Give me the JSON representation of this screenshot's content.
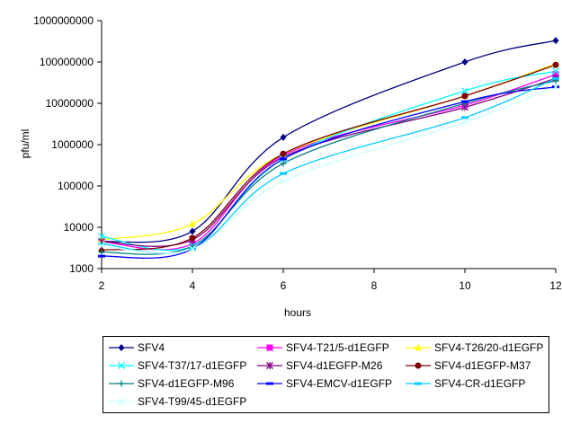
{
  "chart_data": {
    "type": "line",
    "xlabel": "hours",
    "ylabel": "pfu/ml",
    "yscale": "log",
    "xlim": [
      2,
      12
    ],
    "ylim": [
      1000,
      1000000000
    ],
    "x_ticks": [
      "2",
      "4",
      "6",
      "8",
      "10",
      "12"
    ],
    "y_ticks": [
      "1000",
      "10000",
      "100000",
      "1000000",
      "10000000",
      "100000000",
      "1000000000"
    ],
    "grid": false,
    "legend_position": "bottom",
    "x": [
      2,
      4,
      6,
      10,
      12
    ],
    "series": [
      {
        "name": "SFV4",
        "color": "#000080",
        "marker": "diamond",
        "values": [
          4500,
          8000,
          1500000,
          100000000,
          330000000
        ]
      },
      {
        "name": "SFV4-T21/5-d1EGFP",
        "color": "#ff00ff",
        "marker": "square",
        "values": [
          4500,
          4000,
          550000,
          9000000,
          50000000
        ]
      },
      {
        "name": "SFV4-T26/20-d1EGFP",
        "color": "#ffff00",
        "marker": "triangle",
        "values": [
          5000,
          12000,
          600000,
          15000000,
          90000000
        ]
      },
      {
        "name": "SFV4-T37/17-d1EGFP",
        "color": "#00ffff",
        "marker": "x",
        "values": [
          6000,
          3500,
          450000,
          20000000,
          60000000
        ]
      },
      {
        "name": "SFV4-d1EGFP-M26",
        "color": "#800080",
        "marker": "star",
        "values": [
          4500,
          5000,
          500000,
          8000000,
          40000000
        ]
      },
      {
        "name": "SFV4-d1EGFP-M37",
        "color": "#800000",
        "marker": "circle",
        "values": [
          2800,
          5500,
          600000,
          15000000,
          85000000
        ]
      },
      {
        "name": "SFV4-d1EGFP-M96",
        "color": "#008080",
        "marker": "plus",
        "values": [
          2500,
          3500,
          350000,
          10000000,
          35000000
        ]
      },
      {
        "name": "SFV4-EMCV-d1EGFP",
        "color": "#0000ff",
        "marker": "dash",
        "values": [
          2000,
          3000,
          450000,
          11000000,
          25000000
        ]
      },
      {
        "name": "SFV4-CR-d1EGFP",
        "color": "#00ccff",
        "marker": "dash",
        "values": [
          4000,
          3000,
          200000,
          4500000,
          40000000
        ]
      },
      {
        "name": "SFV4-T99/45-d1EGFP",
        "color": "#ccffff",
        "marker": "x",
        "values": [
          3500,
          3000,
          130000,
          3500000,
          25000000
        ]
      }
    ]
  }
}
